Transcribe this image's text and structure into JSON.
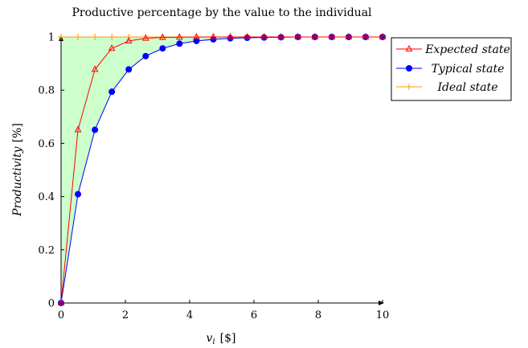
{
  "chart_data": {
    "type": "line",
    "title": "Productive percentage by the value to the individual",
    "xlabel_var": "v",
    "xlabel_sub": "i",
    "xlabel_unit": "[$]",
    "ylabel": "Productivity",
    "ylabel_unit": "[%]",
    "xlim": [
      0,
      10
    ],
    "ylim": [
      0,
      1
    ],
    "xticks": [
      "0",
      "2",
      "4",
      "6",
      "8",
      "10"
    ],
    "xtick_values": [
      0,
      2,
      4,
      6,
      8,
      10
    ],
    "yticks": [
      "0",
      "0.2",
      "0.4",
      "0.6",
      "0.8",
      "1"
    ],
    "ytick_values": [
      0,
      0.2,
      0.4,
      0.6,
      0.8,
      1
    ],
    "grid": false,
    "legend_position": "outside-right-top",
    "shaded_region": {
      "between": [
        "Typical state",
        "Ideal state"
      ],
      "color": "#ccffcc"
    },
    "series": [
      {
        "name": "Expected state",
        "color": "#ff0000",
        "marker": "triangle-open",
        "x": [
          0,
          0.526,
          1.053,
          1.579,
          2.105,
          2.632,
          3.158,
          3.684,
          4.211,
          4.737,
          5.263,
          5.789,
          6.316,
          6.842,
          7.368,
          7.895,
          8.421,
          8.947,
          9.474,
          10
        ],
        "y": [
          0,
          0.651,
          0.878,
          0.957,
          0.985,
          0.995,
          0.998,
          0.999,
          1,
          1,
          1,
          1,
          1,
          1,
          1,
          1,
          1,
          1,
          1,
          1
        ]
      },
      {
        "name": "Typical state",
        "color": "#0000ff",
        "marker": "circle-filled",
        "x": [
          0,
          0.526,
          1.053,
          1.579,
          2.105,
          2.632,
          3.158,
          3.684,
          4.211,
          4.737,
          5.263,
          5.789,
          6.316,
          6.842,
          7.368,
          7.895,
          8.421,
          8.947,
          9.474,
          10
        ],
        "y": [
          0,
          0.409,
          0.651,
          0.794,
          0.878,
          0.928,
          0.957,
          0.975,
          0.985,
          0.991,
          0.995,
          0.997,
          0.998,
          0.999,
          1,
          1,
          1,
          1,
          1,
          1
        ]
      },
      {
        "name": "Ideal state",
        "color": "#ff9900",
        "marker": "plus",
        "x": [
          0,
          0.526,
          1.053,
          1.579,
          2.105,
          2.632,
          3.158,
          3.684,
          4.211,
          4.737,
          5.263,
          5.789,
          6.316,
          6.842,
          7.368,
          7.895,
          8.421,
          8.947,
          9.474,
          10
        ],
        "y": [
          1,
          1,
          1,
          1,
          1,
          1,
          1,
          1,
          1,
          1,
          1,
          1,
          1,
          1,
          1,
          1,
          1,
          1,
          1,
          1
        ]
      }
    ]
  }
}
